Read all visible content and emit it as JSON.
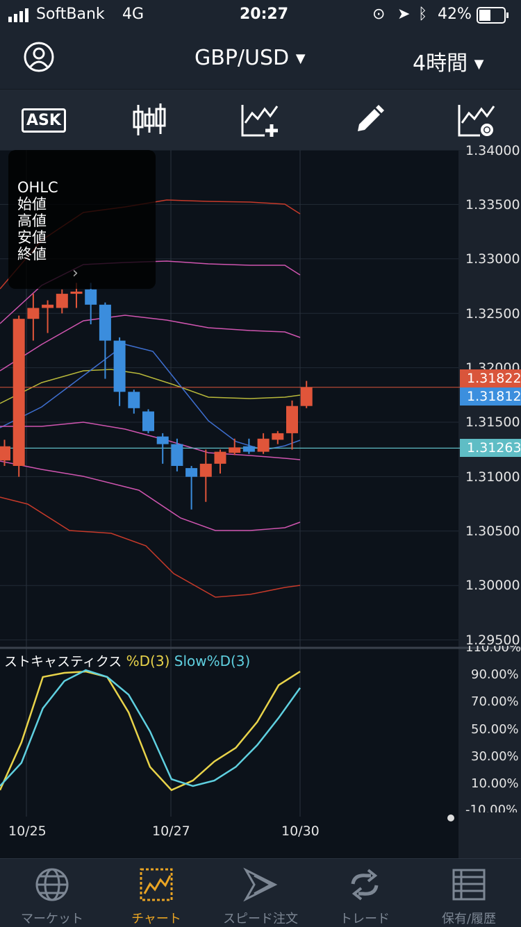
{
  "status_bar": {
    "carrier": "SoftBank",
    "network": "4G",
    "time": "20:27",
    "battery": "42%"
  },
  "header": {
    "pair": "GBP/USD",
    "timeframe": "4時間"
  },
  "toolbar": {
    "ask_label": "ASK"
  },
  "ohlc_panel": {
    "title": "OHLC",
    "open": "始値",
    "high": "高値",
    "low": "安値",
    "close": "終値"
  },
  "price_axis": {
    "labels": [
      "1.34000",
      "1.33500",
      "1.33000",
      "1.32500",
      "1.32000",
      "1.31500",
      "1.31000",
      "1.30500",
      "1.30000",
      "1.29500"
    ]
  },
  "price_tags": {
    "ask": "1.31822",
    "bid": "1.31812",
    "line": "1.31263"
  },
  "stochastic": {
    "name": "ストキャスティクス",
    "d_label": "%D(3)",
    "slow_label": "Slow%D(3)",
    "axis": [
      "110.00%",
      "90.00%",
      "70.00%",
      "50.00%",
      "30.00%",
      "10.00%",
      "-10.00%"
    ]
  },
  "x_axis": {
    "labels": [
      "10/25",
      "10/27",
      "10/30"
    ]
  },
  "tabs": [
    {
      "label": "マーケット"
    },
    {
      "label": "チャート"
    },
    {
      "label": "スピード注文"
    },
    {
      "label": "トレード"
    },
    {
      "label": "保有/履歴"
    }
  ],
  "colors": {
    "up": "#e0553a",
    "down": "#3b8ddd",
    "accent": "#e9a423",
    "stoch_d": "#e8d34a",
    "stoch_slow": "#5fd0e0"
  },
  "chart_data": {
    "type": "candlestick",
    "ylim": [
      1.295,
      1.34
    ],
    "candles": [
      {
        "o": 1.3115,
        "h": 1.3134,
        "l": 1.311,
        "c": 1.3128
      },
      {
        "o": 1.311,
        "h": 1.3248,
        "l": 1.31,
        "c": 1.3245
      },
      {
        "o": 1.3245,
        "h": 1.3268,
        "l": 1.3225,
        "c": 1.3255
      },
      {
        "o": 1.3255,
        "h": 1.3262,
        "l": 1.3232,
        "c": 1.3258
      },
      {
        "o": 1.3255,
        "h": 1.3272,
        "l": 1.325,
        "c": 1.3268
      },
      {
        "o": 1.3268,
        "h": 1.3278,
        "l": 1.3255,
        "c": 1.327
      },
      {
        "o": 1.3272,
        "h": 1.3278,
        "l": 1.324,
        "c": 1.3258
      },
      {
        "o": 1.3258,
        "h": 1.326,
        "l": 1.319,
        "c": 1.3225
      },
      {
        "o": 1.3225,
        "h": 1.3228,
        "l": 1.3165,
        "c": 1.3178
      },
      {
        "o": 1.3178,
        "h": 1.318,
        "l": 1.3158,
        "c": 1.3163
      },
      {
        "o": 1.316,
        "h": 1.3162,
        "l": 1.314,
        "c": 1.3142
      },
      {
        "o": 1.3137,
        "h": 1.314,
        "l": 1.3112,
        "c": 1.313
      },
      {
        "o": 1.313,
        "h": 1.3135,
        "l": 1.3105,
        "c": 1.311
      },
      {
        "o": 1.3108,
        "h": 1.311,
        "l": 1.307,
        "c": 1.31
      },
      {
        "o": 1.31,
        "h": 1.3125,
        "l": 1.3077,
        "c": 1.3112
      },
      {
        "o": 1.3112,
        "h": 1.3125,
        "l": 1.3103,
        "c": 1.3123
      },
      {
        "o": 1.3122,
        "h": 1.3135,
        "l": 1.312,
        "c": 1.3127
      },
      {
        "o": 1.3128,
        "h": 1.3135,
        "l": 1.3121,
        "c": 1.3123
      },
      {
        "o": 1.3123,
        "h": 1.314,
        "l": 1.3121,
        "c": 1.3135
      },
      {
        "o": 1.3134,
        "h": 1.3142,
        "l": 1.313,
        "c": 1.314
      },
      {
        "o": 1.314,
        "h": 1.317,
        "l": 1.3125,
        "c": 1.3165
      },
      {
        "o": 1.3165,
        "h": 1.3188,
        "l": 1.3163,
        "c": 1.3182
      }
    ],
    "stoch_d": [
      5,
      40,
      88,
      91,
      92,
      88,
      62,
      22,
      5,
      12,
      26,
      36,
      55,
      82,
      92
    ],
    "stoch_slow": [
      8,
      25,
      65,
      85,
      93,
      88,
      75,
      48,
      13,
      8,
      12,
      22,
      38,
      58,
      80
    ]
  }
}
